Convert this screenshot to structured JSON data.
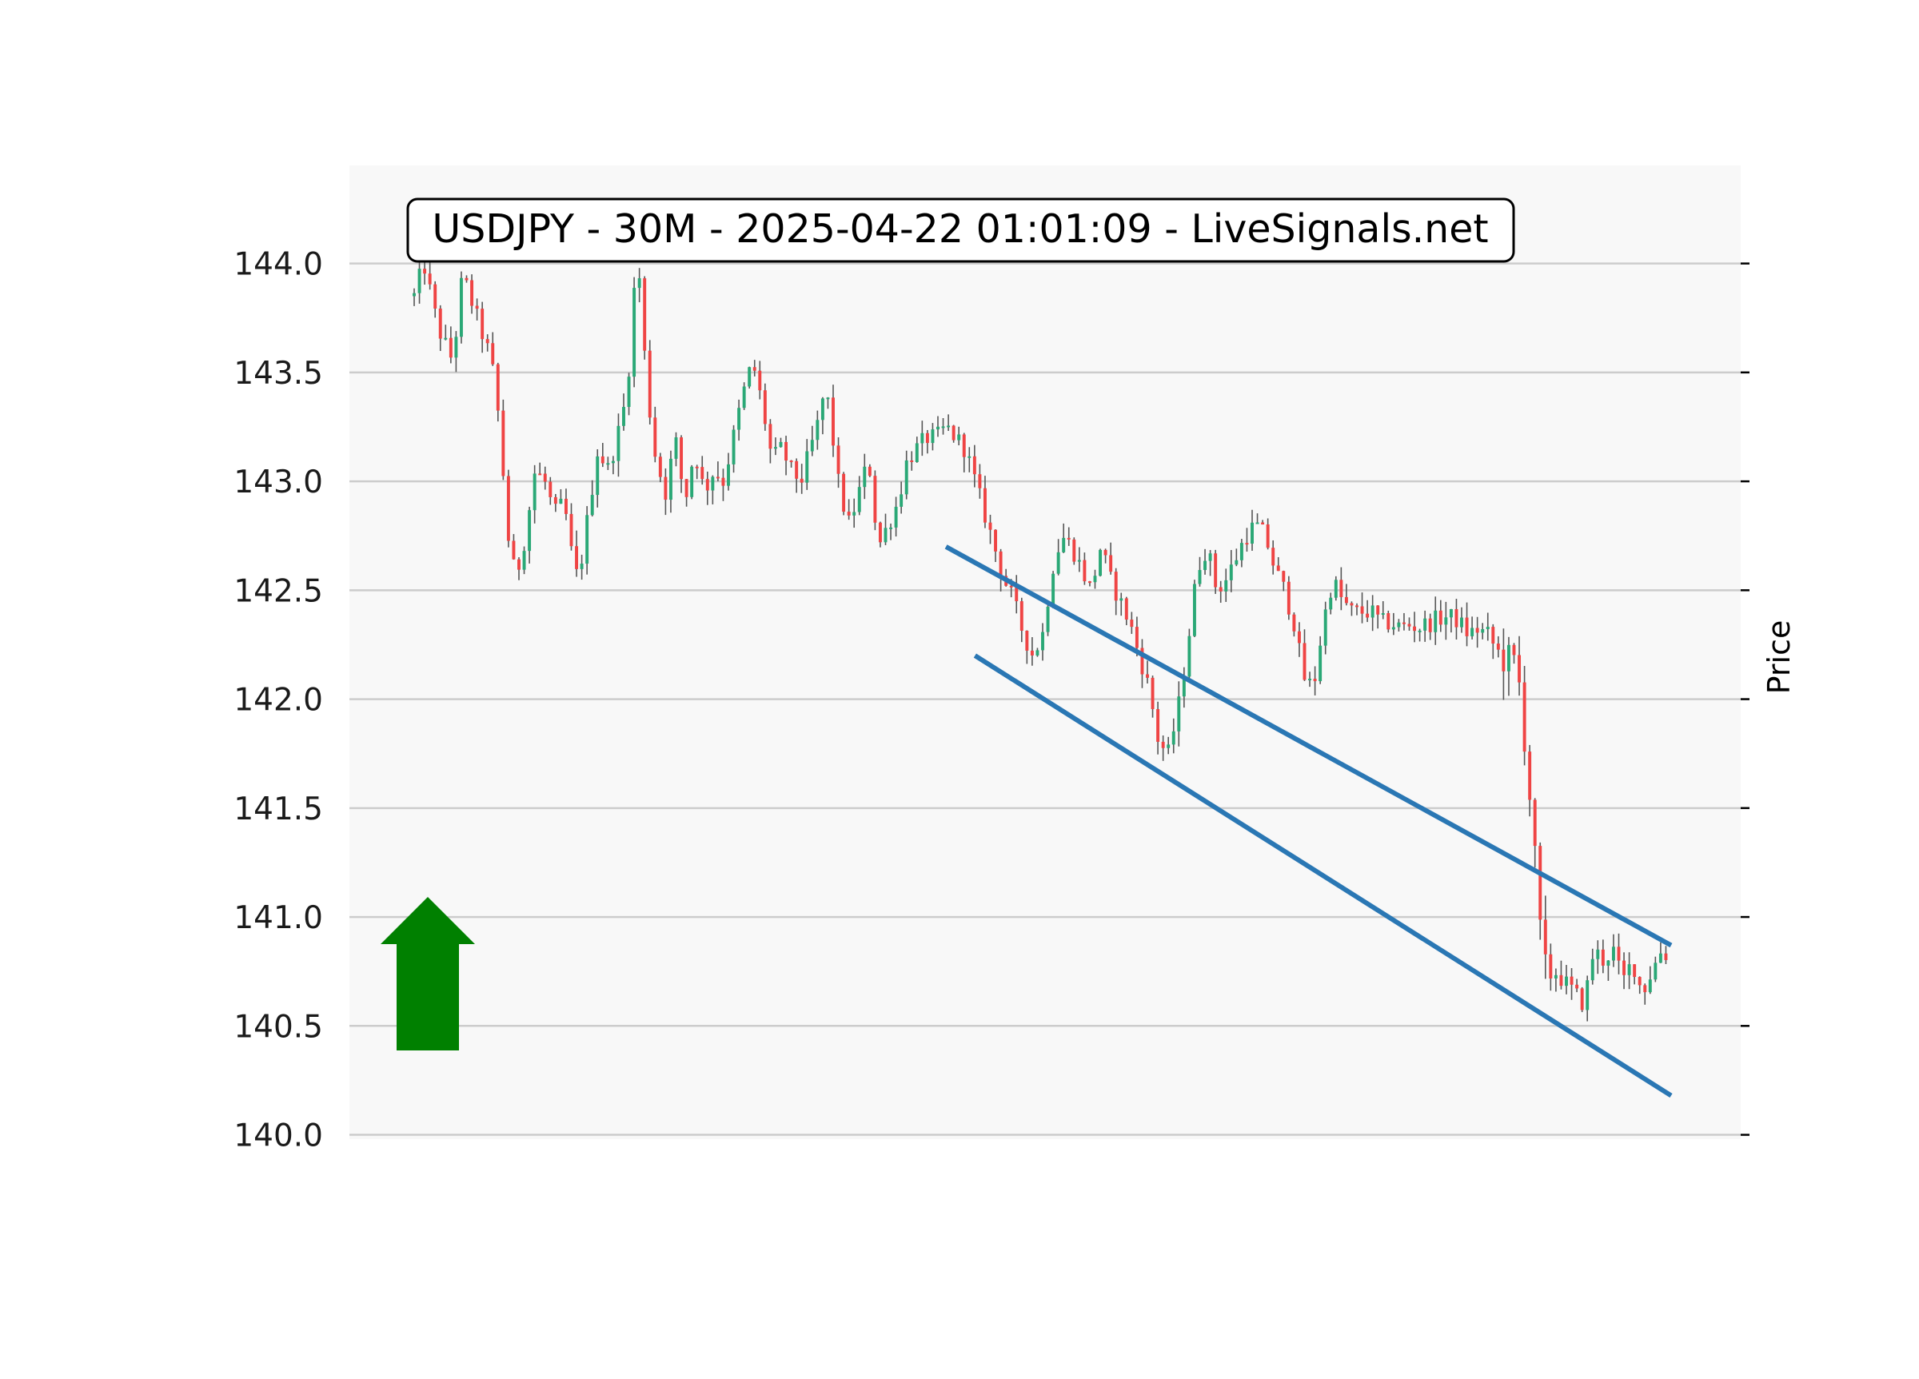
{
  "chart_data": {
    "type": "candlestick",
    "title": "USDJPY - 30M - 2025-04-22 01:01:09 - LiveSignals.net",
    "ylabel": "Price",
    "xlabel": "",
    "ylim": [
      139.98,
      144.45
    ],
    "yticks": [
      "144.0",
      "143.5",
      "143.0",
      "142.5",
      "142.0",
      "141.5",
      "141.0",
      "140.5",
      "140.0"
    ],
    "grid": true,
    "colors": {
      "up": "#2aa876",
      "down": "#ef4444",
      "channel": "#2a77b4",
      "signal": "#008000",
      "grid": "#cccccc",
      "plot_bg": "#f8f8f8"
    },
    "signal": {
      "direction": "up",
      "icon": "arrow-up-icon"
    },
    "candle_count": 240,
    "price_path": [
      [
        0,
        143.85
      ],
      [
        2,
        144.0
      ],
      [
        5,
        143.7
      ],
      [
        8,
        143.55
      ],
      [
        10,
        143.95
      ],
      [
        13,
        143.75
      ],
      [
        16,
        143.55
      ],
      [
        18,
        143.2
      ],
      [
        19,
        142.8
      ],
      [
        21,
        142.55
      ],
      [
        23,
        142.75
      ],
      [
        25,
        143.05
      ],
      [
        27,
        143.0
      ],
      [
        29,
        142.85
      ],
      [
        31,
        142.9
      ],
      [
        33,
        142.6
      ],
      [
        34,
        142.55
      ],
      [
        36,
        142.85
      ],
      [
        38,
        143.15
      ],
      [
        40,
        143.05
      ],
      [
        42,
        143.2
      ],
      [
        44,
        143.4
      ],
      [
        45,
        143.7
      ],
      [
        46,
        144.05
      ],
      [
        47,
        143.85
      ],
      [
        48,
        143.45
      ],
      [
        50,
        143.1
      ],
      [
        52,
        142.95
      ],
      [
        54,
        143.2
      ],
      [
        56,
        142.9
      ],
      [
        58,
        143.15
      ],
      [
        60,
        142.95
      ],
      [
        62,
        143.05
      ],
      [
        64,
        143.0
      ],
      [
        66,
        143.2
      ],
      [
        68,
        143.4
      ],
      [
        70,
        143.55
      ],
      [
        72,
        143.35
      ],
      [
        74,
        143.1
      ],
      [
        76,
        143.15
      ],
      [
        78,
        143.05
      ],
      [
        80,
        143.0
      ],
      [
        82,
        143.15
      ],
      [
        84,
        143.3
      ],
      [
        85,
        143.45
      ],
      [
        86,
        143.3
      ],
      [
        88,
        142.95
      ],
      [
        90,
        142.8
      ],
      [
        92,
        142.95
      ],
      [
        94,
        143.1
      ],
      [
        96,
        142.7
      ],
      [
        98,
        142.8
      ],
      [
        100,
        142.9
      ],
      [
        102,
        143.1
      ],
      [
        104,
        143.15
      ],
      [
        106,
        143.2
      ],
      [
        108,
        143.2
      ],
      [
        110,
        143.25
      ],
      [
        112,
        143.2
      ],
      [
        114,
        143.15
      ],
      [
        116,
        143.0
      ],
      [
        118,
        142.85
      ],
      [
        120,
        142.7
      ],
      [
        122,
        142.55
      ],
      [
        124,
        142.45
      ],
      [
        126,
        142.3
      ],
      [
        128,
        142.2
      ],
      [
        130,
        142.3
      ],
      [
        132,
        142.6
      ],
      [
        134,
        142.75
      ],
      [
        136,
        142.7
      ],
      [
        138,
        142.6
      ],
      [
        140,
        142.5
      ],
      [
        142,
        142.7
      ],
      [
        144,
        142.55
      ],
      [
        146,
        142.45
      ],
      [
        148,
        142.35
      ],
      [
        150,
        142.2
      ],
      [
        152,
        142.05
      ],
      [
        154,
        141.8
      ],
      [
        156,
        141.75
      ],
      [
        158,
        141.95
      ],
      [
        160,
        142.25
      ],
      [
        162,
        142.6
      ],
      [
        164,
        142.7
      ],
      [
        166,
        142.5
      ],
      [
        168,
        142.55
      ],
      [
        170,
        142.65
      ],
      [
        172,
        142.75
      ],
      [
        174,
        142.8
      ],
      [
        176,
        142.75
      ],
      [
        178,
        142.6
      ],
      [
        180,
        142.5
      ],
      [
        182,
        142.35
      ],
      [
        184,
        142.1
      ],
      [
        186,
        142.05
      ],
      [
        188,
        142.35
      ],
      [
        190,
        142.55
      ],
      [
        192,
        142.45
      ],
      [
        194,
        142.4
      ],
      [
        196,
        142.4
      ],
      [
        198,
        142.4
      ],
      [
        200,
        142.35
      ],
      [
        202,
        142.35
      ],
      [
        204,
        142.33
      ],
      [
        206,
        142.34
      ],
      [
        208,
        142.33
      ],
      [
        210,
        142.35
      ],
      [
        212,
        142.37
      ],
      [
        214,
        142.38
      ],
      [
        216,
        142.36
      ],
      [
        218,
        142.3
      ],
      [
        220,
        142.32
      ],
      [
        222,
        142.3
      ],
      [
        224,
        142.22
      ],
      [
        226,
        142.18
      ],
      [
        228,
        142.15
      ],
      [
        229,
        142.0
      ],
      [
        230,
        141.75
      ],
      [
        231,
        141.5
      ],
      [
        232,
        141.2
      ],
      [
        233,
        140.9
      ],
      [
        234,
        140.75
      ],
      [
        236,
        140.75
      ],
      [
        238,
        140.7
      ],
      [
        240,
        140.65
      ],
      [
        242,
        140.6
      ],
      [
        244,
        140.85
      ],
      [
        246,
        140.8
      ],
      [
        248,
        140.85
      ],
      [
        250,
        140.7
      ],
      [
        252,
        140.8
      ],
      [
        254,
        140.65
      ],
      [
        256,
        140.75
      ],
      [
        258,
        140.85
      ],
      [
        260,
        140.8
      ]
    ],
    "channel_lines": [
      {
        "name": "",
        "from": [
          110,
          142.7
        ],
        "to": [
          260,
          140.87
        ]
      },
      {
        "name": "",
        "from": [
          116,
          142.2
        ],
        "to": [
          260,
          140.18
        ]
      }
    ]
  }
}
